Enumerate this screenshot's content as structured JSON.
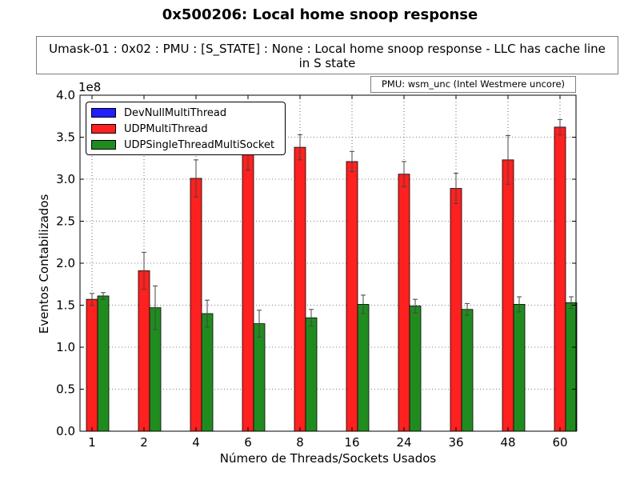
{
  "chart_data": {
    "type": "bar",
    "title": "0x500206: Local home snoop response",
    "subtitle": "Umask-01 : 0x02 : PMU : [S_STATE] : None : Local home snoop response - LLC has  cache line in S state",
    "subtitle_lines": [
      "Umask-01 : 0x02 : PMU : [S_STATE] : None : Local home snoop response - LLC has  cache line",
      "in S state"
    ],
    "annotation": "PMU: wsm_unc (Intel Westmere uncore)",
    "xlabel": "Número de Threads/Sockets Usados",
    "ylabel": "Eventos Contabilizados",
    "y_exponent_label": "1e8",
    "ylim": [
      0,
      4.0
    ],
    "yticks": [
      "0.0",
      "0.5",
      "1.0",
      "1.5",
      "2.0",
      "2.5",
      "3.0",
      "3.5",
      "4.0"
    ],
    "grid": true,
    "legend_position": "top-left",
    "categories": [
      "1",
      "2",
      "4",
      "6",
      "8",
      "16",
      "24",
      "36",
      "48",
      "60"
    ],
    "series": [
      {
        "name": "DevNullMultiThread",
        "color": "#2020ff",
        "values": [
          0,
          0,
          0,
          0,
          0,
          0,
          0,
          0,
          0,
          0
        ],
        "errors": [
          0,
          0,
          0,
          0,
          0,
          0,
          0,
          0,
          0,
          0
        ]
      },
      {
        "name": "UDPMultiThread",
        "color": "#ff2020",
        "values": [
          1.57,
          1.91,
          3.01,
          3.35,
          3.38,
          3.21,
          3.06,
          2.89,
          3.23,
          3.62
        ],
        "errors": [
          0.07,
          0.22,
          0.22,
          0.24,
          0.15,
          0.12,
          0.15,
          0.18,
          0.29,
          0.09
        ]
      },
      {
        "name": "UDPSingleThreadMultiSocket",
        "color": "#208c20",
        "values": [
          1.61,
          1.47,
          1.4,
          1.28,
          1.35,
          1.51,
          1.49,
          1.45,
          1.51,
          1.53
        ],
        "errors": [
          0.04,
          0.26,
          0.16,
          0.16,
          0.1,
          0.11,
          0.08,
          0.07,
          0.09,
          0.07
        ]
      }
    ]
  }
}
